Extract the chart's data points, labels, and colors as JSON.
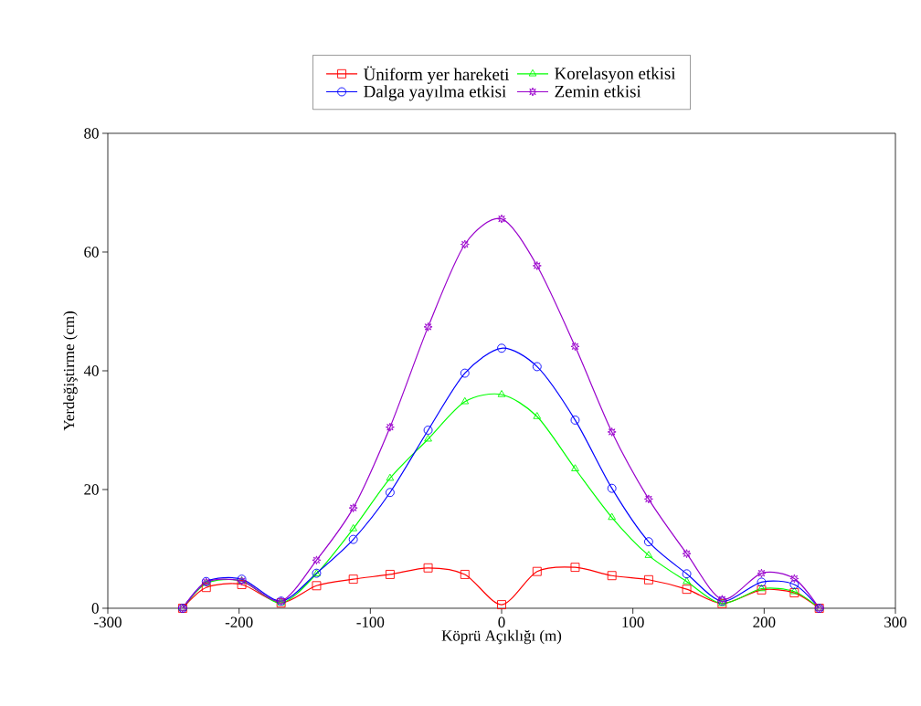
{
  "chart_data": {
    "type": "line",
    "xlabel": "Köprü Açıklığı (m)",
    "ylabel": "Yerdeğiştirme (cm)",
    "x": [
      -243,
      -225,
      -198,
      -168,
      -141,
      -113,
      -85,
      -56,
      -28,
      0,
      27,
      56,
      84,
      112,
      141,
      168,
      198,
      223,
      242
    ],
    "series": [
      {
        "name": "Üniform yer hareketi",
        "color": "#ff0000",
        "marker": "square",
        "values": [
          0,
          3.5,
          4.0,
          0.9,
          3.8,
          4.9,
          5.7,
          6.8,
          5.7,
          0.6,
          6.2,
          6.9,
          5.5,
          4.8,
          3.2,
          0.8,
          3.1,
          2.6,
          0
        ]
      },
      {
        "name": "Dalga yayılma etkisi",
        "color": "#0000ff",
        "marker": "circle",
        "values": [
          0,
          4.5,
          4.9,
          1.2,
          5.9,
          11.6,
          19.5,
          30.0,
          39.6,
          43.8,
          40.7,
          31.7,
          20.2,
          11.2,
          5.8,
          1.2,
          4.4,
          4.0,
          0
        ]
      },
      {
        "name": "Korelasyon etkisi",
        "color": "#00ff00",
        "marker": "triangle",
        "values": [
          0,
          4.2,
          4.6,
          0.9,
          5.8,
          13.4,
          21.9,
          28.5,
          34.8,
          36.0,
          32.3,
          23.5,
          15.3,
          8.9,
          4.5,
          0.8,
          3.3,
          2.8,
          0
        ]
      },
      {
        "name": "Zemin etkisi",
        "color": "#9900cc",
        "marker": "star",
        "values": [
          0,
          4.4,
          4.6,
          1.2,
          8.1,
          16.9,
          30.5,
          47.4,
          61.3,
          65.6,
          57.7,
          44.1,
          29.7,
          18.4,
          9.2,
          1.5,
          5.9,
          5.0,
          0
        ]
      }
    ],
    "xlim": [
      -300,
      300
    ],
    "ylim": [
      0,
      80
    ],
    "xticks": [
      -300,
      -200,
      -100,
      0,
      100,
      200,
      300
    ],
    "yticks": [
      0,
      20,
      40,
      60,
      80
    ],
    "grid": false,
    "legend": "top",
    "line_style": "solid"
  }
}
